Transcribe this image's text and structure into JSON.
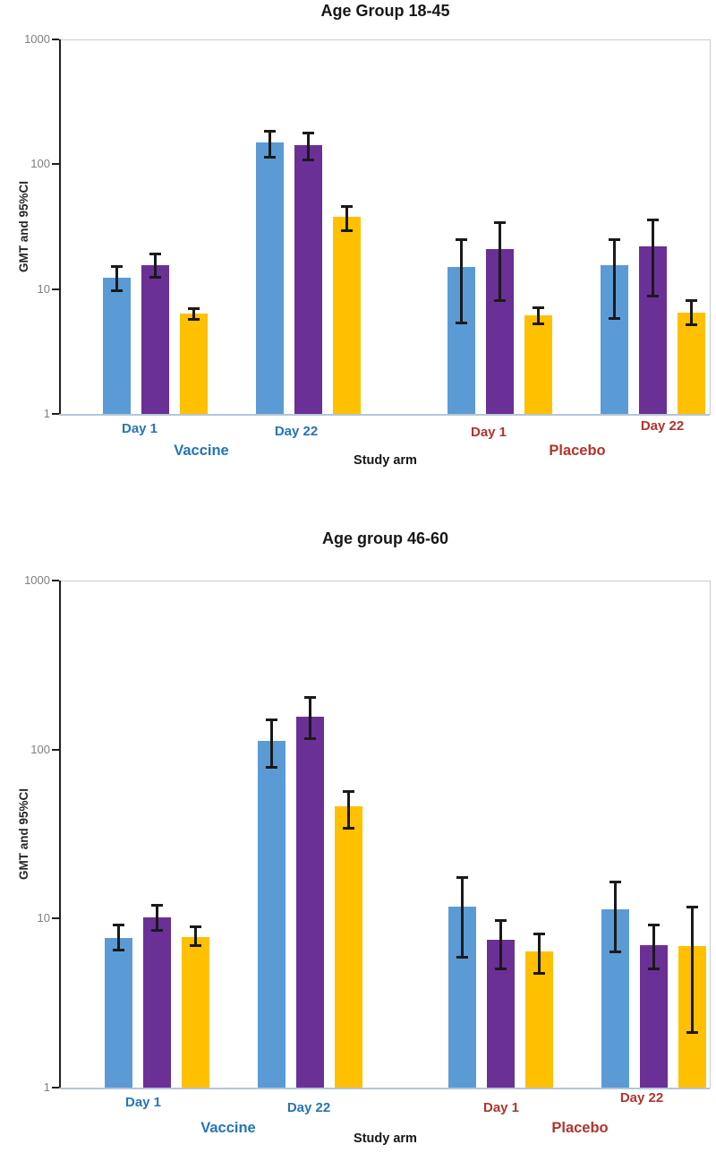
{
  "colors": {
    "bar_blue": "#5B9BD5",
    "bar_purple": "#6B3096",
    "bar_yellow": "#FFC000",
    "vaccine_label": "#2574B5",
    "placebo_label": "#B2332E",
    "error_bar": "#1A1A1A",
    "axis_tick_text": "#7F7F7F"
  },
  "chart_data": [
    {
      "type": "bar",
      "y_scale": "log",
      "title": "Age Group 18-45",
      "ylabel": "GMT and 95%CI",
      "xlabel": "Study arm",
      "ylim": [
        1,
        1000
      ],
      "yticks": [
        1,
        10,
        100,
        1000
      ],
      "grid": false,
      "legend": false,
      "arm_labels": [
        "Vaccine",
        "Placebo"
      ],
      "categories": [
        {
          "label": "Day 1",
          "arm": "Vaccine"
        },
        {
          "label": "Day 22",
          "arm": "Vaccine"
        },
        {
          "label": "Day 1",
          "arm": "Placebo"
        },
        {
          "label": "Day 22",
          "arm": "Placebo"
        }
      ],
      "series": [
        {
          "color": "blue",
          "values": [
            12.3,
            150,
            15.0,
            15.5
          ],
          "ci_low": [
            9.7,
            113,
            5.3,
            5.8
          ],
          "ci_high": [
            15.4,
            185,
            25.0,
            25.0
          ]
        },
        {
          "color": "purple",
          "values": [
            15.5,
            143,
            21.0,
            22.0
          ],
          "ci_low": [
            12.4,
            108,
            8.0,
            8.7
          ],
          "ci_high": [
            19.4,
            180,
            34.5,
            36.0
          ]
        },
        {
          "color": "yellow",
          "values": [
            6.4,
            38,
            6.2,
            6.5
          ],
          "ci_low": [
            5.7,
            29,
            5.2,
            5.1
          ],
          "ci_high": [
            7.0,
            46,
            7.1,
            8.1
          ]
        }
      ]
    },
    {
      "type": "bar",
      "y_scale": "log",
      "title": "Age group 46-60",
      "ylabel": "GMT and 95%CI",
      "xlabel": "Study arm",
      "ylim": [
        1,
        1000
      ],
      "yticks": [
        1,
        10,
        100,
        1000
      ],
      "grid": false,
      "legend": false,
      "arm_labels": [
        "Vaccine",
        "Placebo"
      ],
      "categories": [
        {
          "label": "Day 1",
          "arm": "Vaccine"
        },
        {
          "label": "Day 22",
          "arm": "Vaccine"
        },
        {
          "label": "Day 1",
          "arm": "Placebo"
        },
        {
          "label": "Day 22",
          "arm": "Placebo"
        }
      ],
      "series": [
        {
          "color": "blue",
          "values": [
            7.7,
            112,
            11.7,
            11.3
          ],
          "ci_low": [
            6.5,
            78,
            5.9,
            6.3
          ],
          "ci_high": [
            9.2,
            150,
            17.5,
            16.5
          ]
        },
        {
          "color": "purple",
          "values": [
            10.2,
            157,
            7.5,
            7.0
          ],
          "ci_low": [
            8.5,
            115,
            5.0,
            5.0
          ],
          "ci_high": [
            12.0,
            205,
            9.8,
            9.2
          ]
        },
        {
          "color": "yellow",
          "values": [
            7.8,
            46,
            6.4,
            6.9
          ],
          "ci_low": [
            6.9,
            34,
            4.7,
            2.1
          ],
          "ci_high": [
            9.0,
            57,
            8.2,
            11.7
          ]
        }
      ]
    }
  ]
}
